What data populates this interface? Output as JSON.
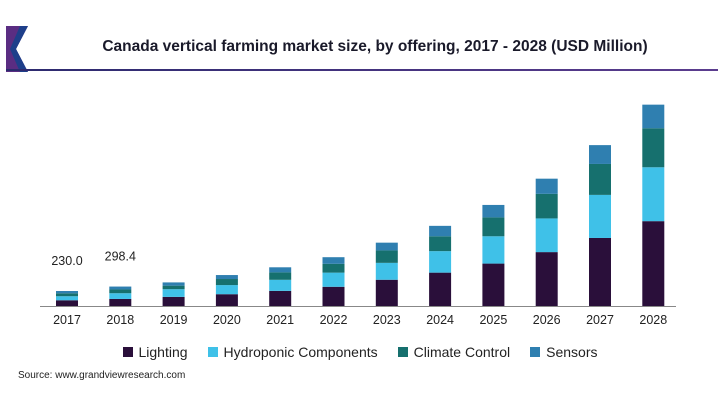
{
  "title": "Canada vertical farming market size, by offering, 2017 - 2028 (USD Million)",
  "source": "Source: www.grandviewresearch.com",
  "colors": {
    "Lighting": "#2a0f3a",
    "Hydroponic Components": "#3fc1e8",
    "Climate Control": "#16706e",
    "Sensors": "#2f7fb0"
  },
  "chart_data": {
    "type": "bar",
    "stacked": true,
    "title": "Canada vertical farming market size, by offering, 2017 - 2028 (USD Million)",
    "categories": [
      "2017",
      "2018",
      "2019",
      "2020",
      "2021",
      "2022",
      "2023",
      "2024",
      "2025",
      "2026",
      "2027",
      "2028"
    ],
    "series": [
      {
        "name": "Lighting",
        "values": [
          88,
          108,
          140,
          181,
          232,
          295,
          403,
          512,
          651,
          827,
          1044,
          1302
        ]
      },
      {
        "name": "Hydroponic Components",
        "values": [
          62,
          88,
          118,
          140,
          170,
          217,
          259,
          330,
          419,
          517,
          661,
          827
        ]
      },
      {
        "name": "Climate Control",
        "values": [
          45,
          58,
          54,
          93,
          114,
          135,
          191,
          228,
          290,
          377,
          475,
          599
        ]
      },
      {
        "name": "Sensors",
        "values": [
          35,
          44.4,
          50,
          61,
          78,
          102,
          119,
          160,
          191,
          233,
          289,
          362
        ]
      }
    ],
    "data_labels": [
      {
        "category": "2017",
        "text": "230.0"
      },
      {
        "category": "2018",
        "text": "298.4"
      }
    ],
    "ylim": [
      0,
      3100
    ],
    "grid": false,
    "legend": "bottom"
  }
}
